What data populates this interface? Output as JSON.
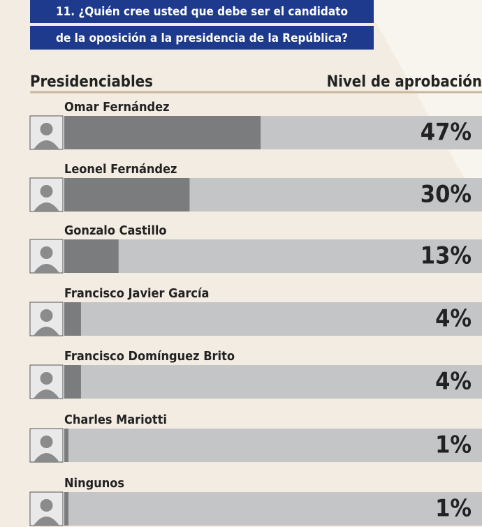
{
  "chart_data": {
    "type": "bar",
    "orientation": "horizontal",
    "title": [
      "11. ¿Quién cree usted que debe ser el candidato",
      "de la oposición a la presidencia de la República?"
    ],
    "category_header": "Presidenciables",
    "value_header": "Nivel de aprobación",
    "categories": [
      "Omar Fernández",
      "Leonel Fernández",
      "Gonzalo Castillo",
      "Francisco Javier García",
      "Francisco Domínguez Brito",
      "Charles Mariotti",
      "Ningunos"
    ],
    "values": [
      47,
      30,
      13,
      4,
      4,
      1,
      1
    ],
    "value_labels": [
      "47%",
      "30%",
      "13%",
      "4%",
      "4%",
      "1%",
      "1%"
    ],
    "xlim": [
      0,
      100
    ],
    "color": "#7b7c7e",
    "track_color": "#c4c5c7"
  }
}
